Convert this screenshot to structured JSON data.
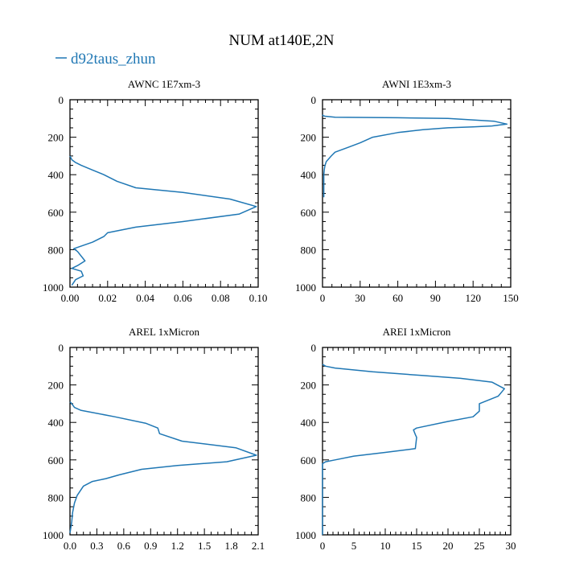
{
  "figure": {
    "title": "NUM at140E,2N",
    "legend": {
      "label": "d92taus_zhun",
      "color": "#1f77b4"
    }
  },
  "chart_data": [
    {
      "type": "line",
      "title": "AWNC  1E7xm-3",
      "xlim": [
        0,
        0.1
      ],
      "ylim": [
        1000,
        0
      ],
      "xticks": [
        "0.00",
        "0.02",
        "0.04",
        "0.06",
        "0.08",
        "0.10"
      ],
      "yticks": [
        "0",
        "200",
        "400",
        "600",
        "800",
        "1000"
      ],
      "series": [
        {
          "x": [
            0,
            0.001,
            0.003,
            0.006,
            0.012,
            0.018,
            0.025,
            0.035,
            0.06,
            0.085,
            0.099,
            0.09,
            0.06,
            0.035,
            0.02,
            0.018,
            0.012,
            0.002,
            0.004,
            0.008,
            0.004,
            0.001,
            0.006,
            0.007,
            0.003,
            0.001
          ],
          "y": [
            300,
            320,
            335,
            350,
            375,
            400,
            435,
            470,
            495,
            530,
            570,
            610,
            650,
            680,
            710,
            730,
            760,
            795,
            810,
            860,
            885,
            900,
            915,
            940,
            960,
            990
          ]
        }
      ]
    },
    {
      "type": "line",
      "title": "AWNI  1E3xm-3",
      "xlim": [
        0,
        150
      ],
      "ylim": [
        1000,
        0
      ],
      "xticks": [
        "0",
        "30",
        "60",
        "90",
        "120",
        "150"
      ],
      "yticks": [
        "0",
        "200",
        "400",
        "600",
        "800",
        "1000"
      ],
      "series": [
        {
          "x": [
            0,
            0.5,
            2,
            10,
            60,
            100,
            137,
            147,
            135,
            120,
            100,
            80,
            60,
            40,
            30,
            20,
            10,
            7,
            5,
            3,
            2,
            1.5,
            1,
            1,
            1,
            1
          ],
          "y": [
            80,
            85,
            88,
            93,
            96,
            100,
            115,
            130,
            140,
            145,
            150,
            160,
            175,
            200,
            230,
            255,
            280,
            300,
            315,
            330,
            350,
            370,
            400,
            450,
            500,
            520
          ]
        }
      ]
    },
    {
      "type": "line",
      "title": "AREL  1xMicron",
      "xlim": [
        0,
        2.1
      ],
      "ylim": [
        1000,
        0
      ],
      "xticks": [
        "0.0",
        "0.3",
        "0.6",
        "0.9",
        "1.2",
        "1.5",
        "1.8",
        "2.1"
      ],
      "yticks": [
        "0",
        "200",
        "400",
        "600",
        "800",
        "1000"
      ],
      "series": [
        {
          "x": [
            0,
            0.02,
            0.05,
            0.12,
            0.5,
            0.85,
            0.98,
            1.0,
            1.25,
            1.85,
            2.08,
            1.75,
            1.2,
            0.8,
            0.55,
            0.4,
            0.25,
            0.15,
            0.08,
            0.05,
            0.03,
            0.02,
            0.01,
            0.0
          ],
          "y": [
            290,
            300,
            320,
            335,
            370,
            405,
            430,
            460,
            500,
            535,
            575,
            610,
            630,
            650,
            680,
            700,
            715,
            740,
            790,
            830,
            880,
            930,
            960,
            990
          ]
        }
      ]
    },
    {
      "type": "line",
      "title": "AREI  1xMicron",
      "xlim": [
        0,
        30
      ],
      "ylim": [
        1000,
        0
      ],
      "xticks": [
        "0",
        "5",
        "10",
        "15",
        "20",
        "25",
        "30"
      ],
      "yticks": [
        "0",
        "200",
        "400",
        "600",
        "800",
        "1000"
      ],
      "series": [
        {
          "x": [
            0,
            0.5,
            2,
            8,
            16,
            22,
            27,
            29,
            28,
            25,
            25,
            24,
            20,
            15,
            14.5,
            14.8,
            15,
            14.8,
            10,
            5,
            2,
            0.5,
            0,
            0,
            0,
            0,
            0
          ],
          "y": [
            90,
            100,
            110,
            130,
            150,
            165,
            185,
            220,
            260,
            300,
            340,
            370,
            395,
            430,
            440,
            465,
            480,
            540,
            560,
            580,
            600,
            610,
            620,
            700,
            800,
            900,
            1000
          ]
        }
      ]
    }
  ]
}
